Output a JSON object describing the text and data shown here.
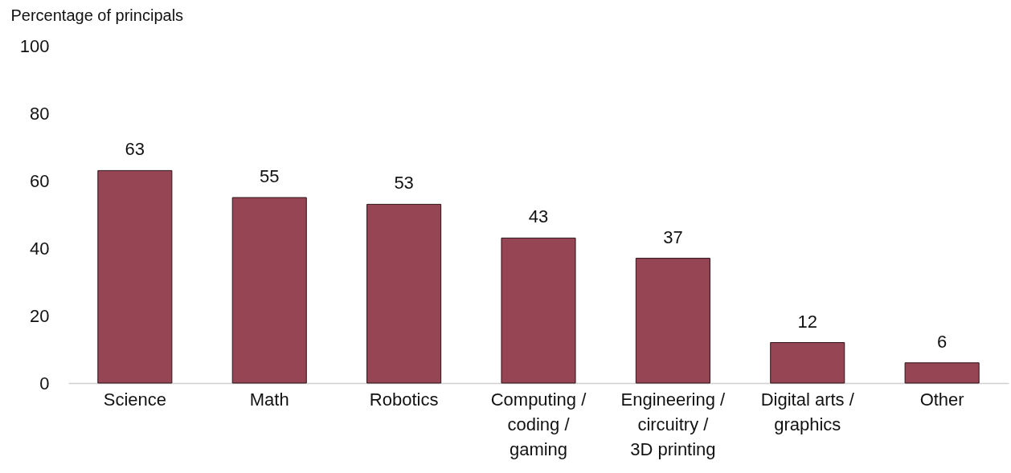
{
  "chart_data": {
    "type": "bar",
    "ylabel": "Percentage of principals",
    "categories": [
      "Science",
      "Math",
      "Robotics",
      "Computing / coding / gaming",
      "Engineering / circuitry / 3D printing",
      "Digital arts / graphics",
      "Other"
    ],
    "values": [
      63,
      55,
      53,
      43,
      37,
      12,
      6
    ],
    "color": "#954553",
    "ylim": [
      0,
      100
    ],
    "yticks": [
      0,
      20,
      40,
      60,
      80,
      100
    ],
    "data_labels": true
  }
}
